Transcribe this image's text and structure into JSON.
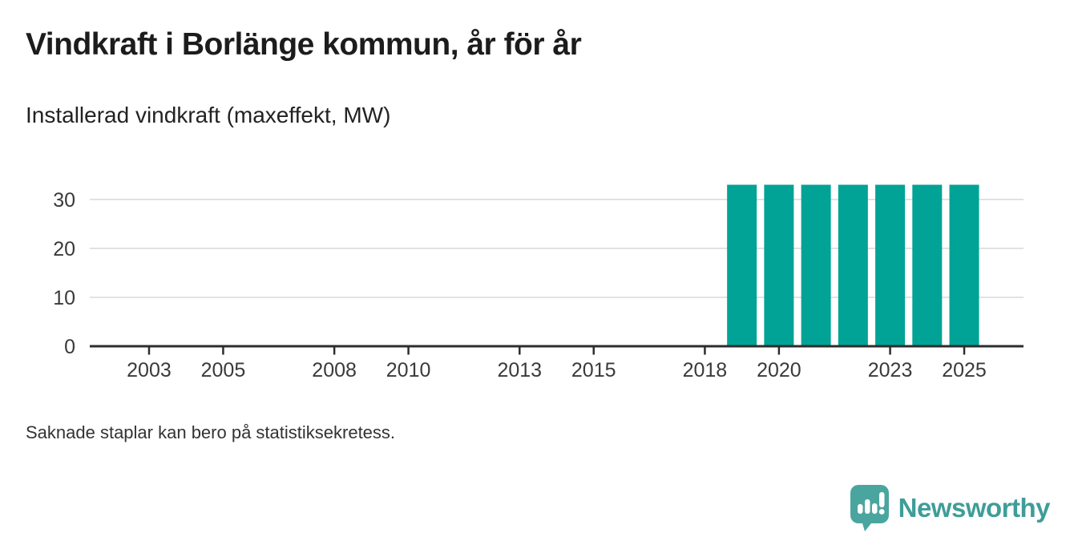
{
  "header": {
    "title": "Vindkraft i Borlänge kommun, år för år",
    "subtitle": "Installerad vindkraft (maxeffekt, MW)"
  },
  "footer": {
    "note": "Saknade staplar kan bero på statistiksekretess."
  },
  "branding": {
    "name": "Newsworthy",
    "icon": "newsworthy-speech-bubble-barchart-icon",
    "icon_color": "#4ba59f",
    "text_color": "#3f9d98"
  },
  "colors": {
    "background": "#ffffff",
    "bar": "#00a396",
    "axis_line": "#2d2d2d",
    "gridline": "#d8d8d8",
    "tick_label": "#3a3a3a"
  },
  "chart_data": {
    "type": "bar",
    "title": "Vindkraft i Borlänge kommun, år för år",
    "ylabel": "Installerad vindkraft (maxeffekt, MW)",
    "x": [
      2019,
      2020,
      2021,
      2022,
      2023,
      2024,
      2025
    ],
    "values": [
      33,
      33,
      33,
      33,
      33,
      33,
      33
    ],
    "categories_note": "Bars only for 2019–2025; years 2002–2018 show no bars (see footnote about statistical secrecy)",
    "x_ticks": [
      2003,
      2005,
      2008,
      2010,
      2013,
      2015,
      2018,
      2020,
      2023,
      2025
    ],
    "x_tick_labels": [
      "2003",
      "2005",
      "2008",
      "2010",
      "2013",
      "2015",
      "2018",
      "2020",
      "2023",
      "2025"
    ],
    "y_ticks": [
      0,
      10,
      20,
      30
    ],
    "y_tick_labels": [
      "0",
      "10",
      "20",
      "30"
    ],
    "ylim": [
      0,
      38
    ],
    "xlim": [
      2001.4,
      2026.6
    ],
    "grid": "horizontal",
    "legend": "none"
  }
}
